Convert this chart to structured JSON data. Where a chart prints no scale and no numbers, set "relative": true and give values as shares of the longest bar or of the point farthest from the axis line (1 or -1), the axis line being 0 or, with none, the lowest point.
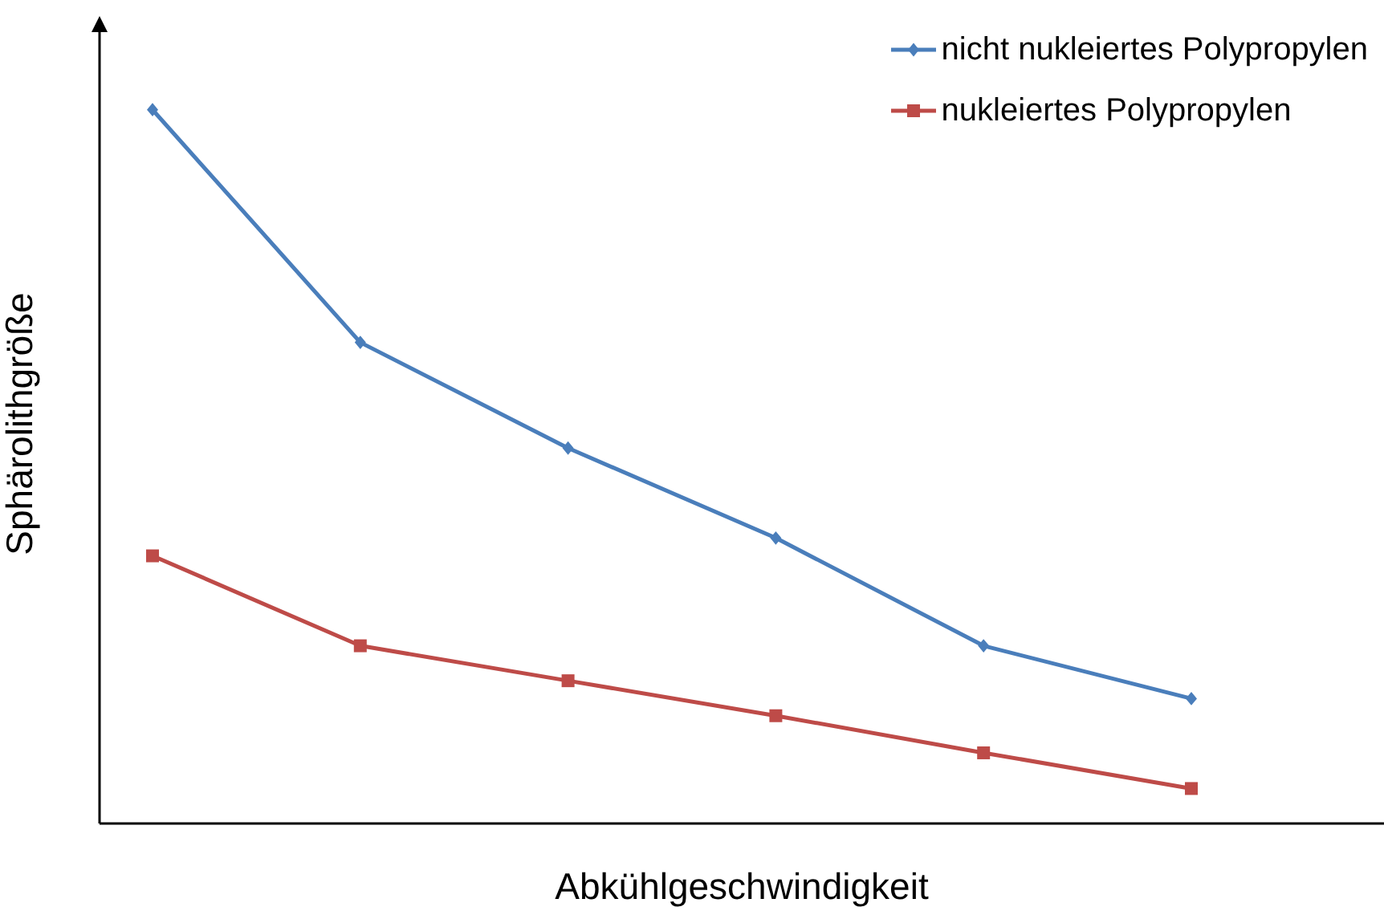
{
  "chart_data": {
    "type": "line",
    "xlabel": "Abkühlgeschwindigkeit",
    "ylabel": "Sphärolithgröße",
    "relative": true,
    "legend": "top right",
    "line_style": "solid",
    "categories": [
      null,
      null,
      null,
      null,
      null,
      null
    ],
    "series": [
      {
        "name": "nicht nukleiertes Polypropylen",
        "color": "#4a7ebb",
        "marker": "diamond",
        "values": [
          1,
          0.674,
          0.526,
          0.4,
          0.249,
          0.175
        ]
      },
      {
        "name": "nukleiertes Polypropylen",
        "color": "#be4b48",
        "marker": "square",
        "values": [
          0.375,
          0.249,
          0.2,
          0.151,
          0.099,
          0.049
        ]
      }
    ]
  }
}
